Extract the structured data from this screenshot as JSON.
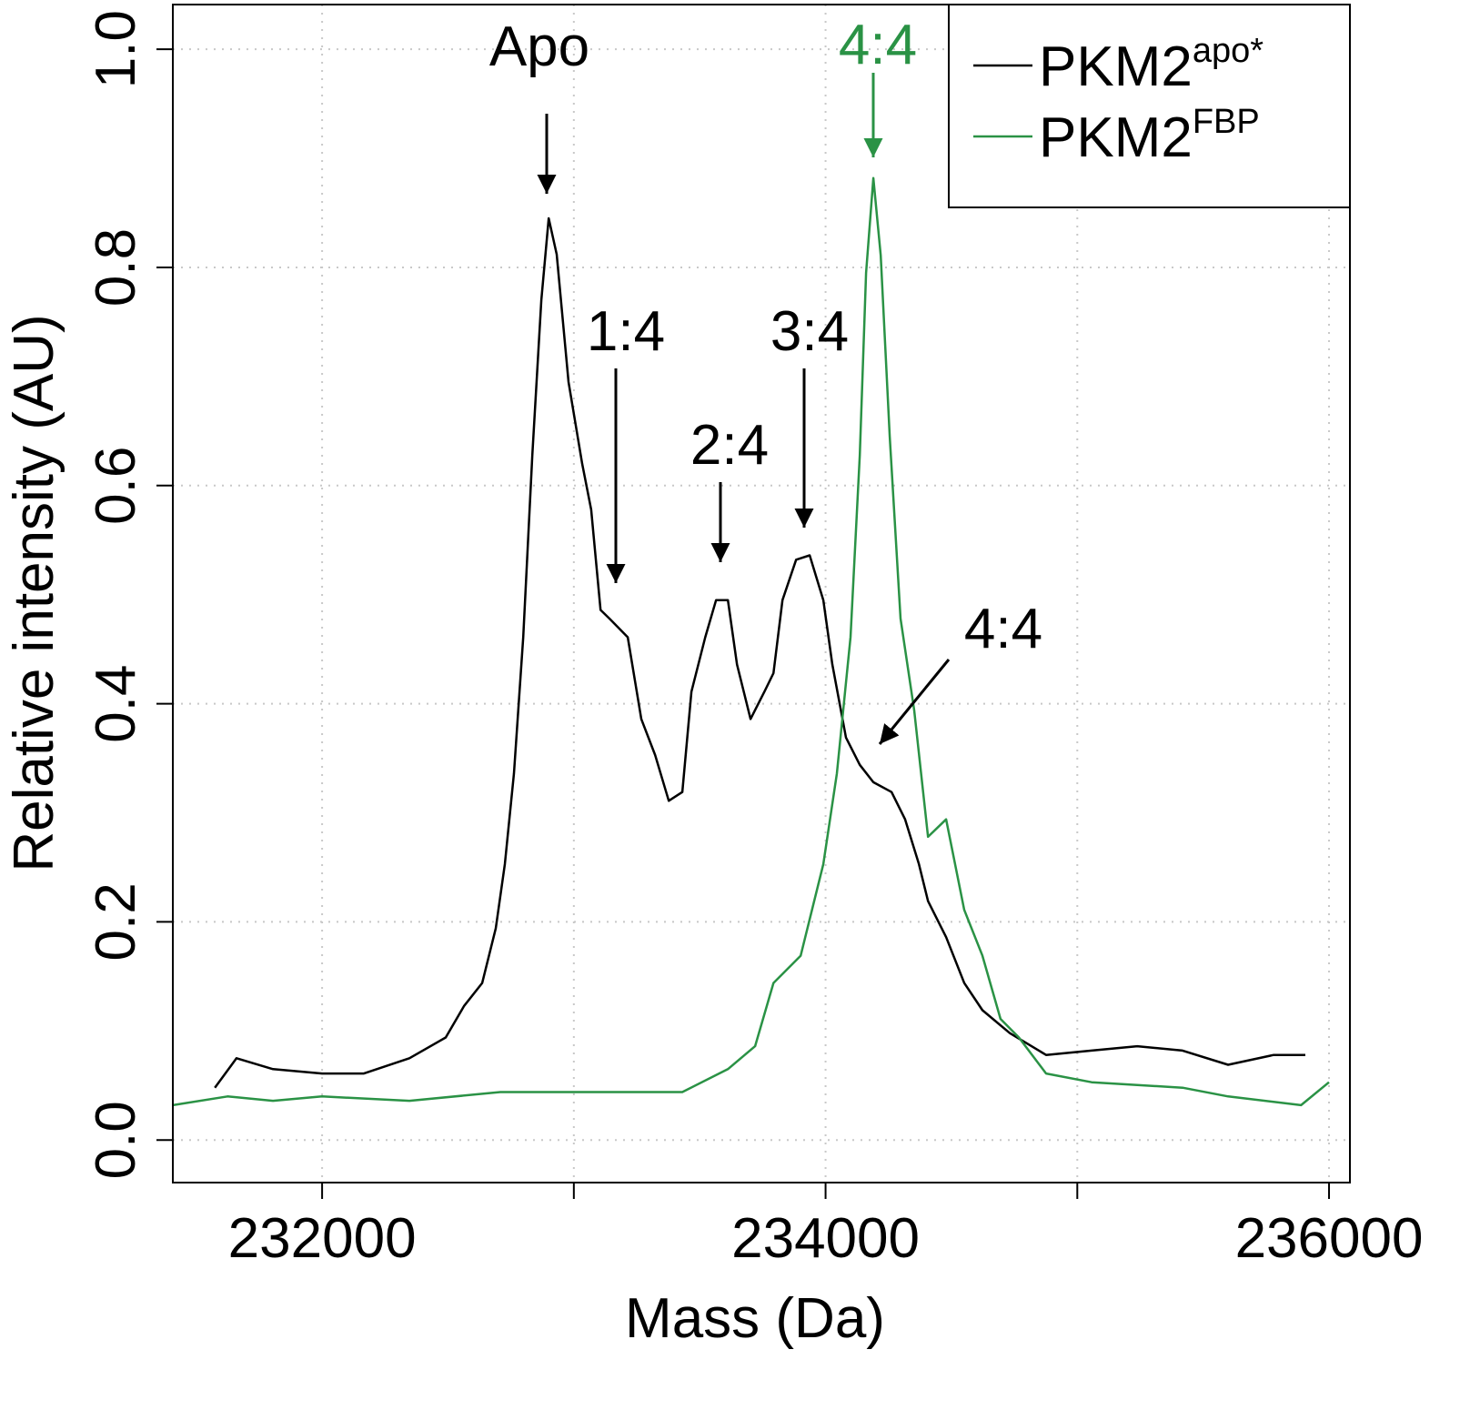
{
  "chart_data": {
    "type": "line",
    "xlabel": "Mass (Da)",
    "ylabel": "Relative intensity (AU)",
    "xlim": [
      231407,
      236083
    ],
    "ylim": [
      -0.039,
      1.041
    ],
    "xticks": [
      232000,
      234000,
      236000
    ],
    "xminorticks": [
      233000,
      235000
    ],
    "yticks": [
      {
        "value": 0,
        "label": "0.0"
      },
      0.2,
      0.4,
      0.6,
      0.8,
      {
        "value": 1,
        "label": "1.0"
      }
    ],
    "grid": true,
    "legend": "upper right",
    "series": [
      {
        "name": "PKM2",
        "superscript": "apo*",
        "color": "#000000",
        "x": [
          231574,
          231660,
          231805,
          232000,
          232166,
          232347,
          232491,
          232564,
          232636,
          232690,
          232726,
          232762,
          232799,
          232835,
          232871,
          232900,
          232932,
          232979,
          233033,
          233069,
          233106,
          233142,
          233214,
          233268,
          233323,
          233377,
          233431,
          233467,
          233522,
          233565,
          233612,
          233648,
          233702,
          233757,
          233793,
          233829,
          233883,
          233937,
          233991,
          234027,
          234081,
          234136,
          234190,
          234262,
          234316,
          234371,
          234407,
          234479,
          234551,
          234623,
          234732,
          234876,
          235057,
          235238,
          235418,
          235599,
          235780,
          235906
        ],
        "values": [
          0.048,
          0.075,
          0.065,
          0.061,
          0.061,
          0.075,
          0.094,
          0.123,
          0.144,
          0.194,
          0.253,
          0.336,
          0.461,
          0.628,
          0.77,
          0.845,
          0.812,
          0.695,
          0.62,
          0.578,
          0.486,
          0.478,
          0.461,
          0.386,
          0.353,
          0.311,
          0.319,
          0.411,
          0.461,
          0.495,
          0.495,
          0.436,
          0.386,
          0.411,
          0.428,
          0.495,
          0.532,
          0.536,
          0.495,
          0.436,
          0.369,
          0.344,
          0.328,
          0.319,
          0.294,
          0.253,
          0.219,
          0.186,
          0.144,
          0.119,
          0.098,
          0.078,
          0.082,
          0.086,
          0.082,
          0.069,
          0.078,
          0.078
        ]
      },
      {
        "name": "PKM2",
        "superscript": "FBP",
        "color": "#2a9245",
        "x": [
          231407,
          231624,
          231805,
          232000,
          232347,
          232708,
          233069,
          233431,
          233612,
          233720,
          233793,
          233901,
          233991,
          234045,
          234099,
          234136,
          234161,
          234190,
          234219,
          234255,
          234298,
          234352,
          234407,
          234479,
          234551,
          234623,
          234695,
          234768,
          234876,
          235057,
          235418,
          235599,
          235889,
          236000
        ],
        "values": [
          0.032,
          0.04,
          0.036,
          0.04,
          0.036,
          0.044,
          0.044,
          0.044,
          0.065,
          0.086,
          0.144,
          0.169,
          0.253,
          0.336,
          0.461,
          0.628,
          0.795,
          0.882,
          0.811,
          0.645,
          0.478,
          0.394,
          0.278,
          0.294,
          0.211,
          0.169,
          0.111,
          0.094,
          0.061,
          0.053,
          0.048,
          0.04,
          0.032,
          0.053
        ]
      }
    ],
    "annotations": [
      {
        "text": "Apo",
        "color": "#000000"
      },
      {
        "text": "1:4",
        "color": "#000000"
      },
      {
        "text": "2:4",
        "color": "#000000"
      },
      {
        "text": "3:4",
        "color": "#000000"
      },
      {
        "text": "4:4",
        "color": "#000000"
      },
      {
        "text": "4:4",
        "color": "#2a9245"
      }
    ]
  }
}
